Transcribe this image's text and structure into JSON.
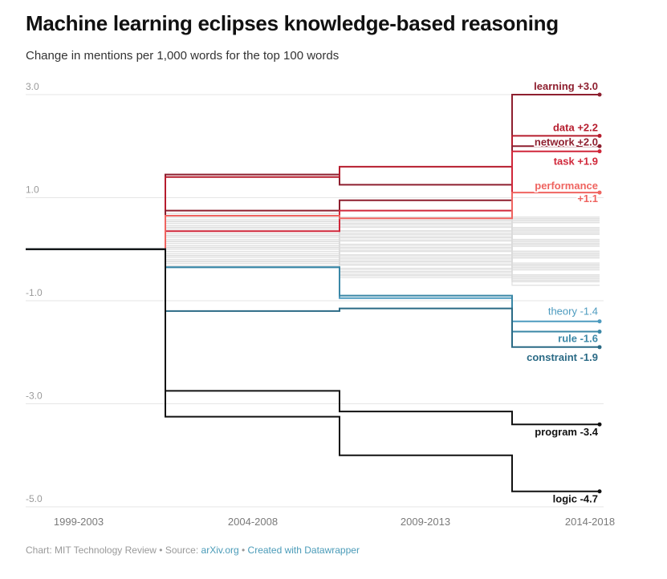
{
  "title": "Machine learning eclipses knowledge-based reasoning",
  "subtitle": "Change in mentions per 1,000 words for the top 100 words",
  "footer": {
    "prefix": "Chart: MIT Technology Review • Source: ",
    "source": "arXiv.org",
    "separator": " • ",
    "credit": "Created with Datawrapper"
  },
  "colors": {
    "dark_red": "#8e1f2f",
    "red": "#d0273a",
    "light_red": "#ef6460",
    "dark_blue": "#2a6a85",
    "blue": "#4d9bbf",
    "black": "#111111",
    "background_line": "#dcdcdc"
  },
  "chart_data": {
    "type": "line",
    "step": true,
    "categories": [
      "1999-2003",
      "2004-2008",
      "2009-2013",
      "2014-2018"
    ],
    "yticks": [
      3.0,
      1.0,
      -1.0,
      -3.0,
      -5.0
    ],
    "ytick_labels": [
      "3.0",
      "1.0",
      "-1.0",
      "-3.0",
      "-5.0"
    ],
    "ylim": [
      -5.0,
      3.0
    ],
    "grid": true,
    "series": [
      {
        "name": "learning",
        "label": "learning +3.0",
        "values": [
          0,
          1.45,
          1.25,
          3.0
        ],
        "color": "#8e1f2f"
      },
      {
        "name": "data",
        "label": "data +2.2",
        "values": [
          0,
          1.4,
          1.6,
          2.2
        ],
        "color": "#b61d2e"
      },
      {
        "name": "network",
        "label": "network +2.0",
        "values": [
          0,
          0.75,
          0.95,
          2.0
        ],
        "color": "#8e1f2f"
      },
      {
        "name": "task",
        "label": "task +1.9",
        "values": [
          0,
          0.35,
          0.75,
          1.9
        ],
        "color": "#d0273a"
      },
      {
        "name": "performance",
        "label": "performance +1.1",
        "values": [
          0,
          0.65,
          0.6,
          1.1
        ],
        "color": "#ef6460"
      },
      {
        "name": "theory",
        "label": "theory -1.4",
        "values": [
          0,
          -0.35,
          -0.95,
          -1.4
        ],
        "color": "#4d9bbf"
      },
      {
        "name": "rule",
        "label": "rule -1.6",
        "values": [
          0,
          -0.35,
          -0.9,
          -1.6
        ],
        "color": "#3a87a6"
      },
      {
        "name": "constraint",
        "label": "constraint -1.9",
        "values": [
          0,
          -1.2,
          -1.15,
          -1.9
        ],
        "color": "#2a6a85"
      },
      {
        "name": "program",
        "label": "program -3.4",
        "values": [
          0,
          -2.75,
          -3.15,
          -3.4
        ],
        "color": "#111111"
      },
      {
        "name": "logic",
        "label": "logic -4.7",
        "values": [
          0,
          -3.25,
          -4.0,
          -4.7
        ],
        "color": "#111111"
      }
    ]
  }
}
